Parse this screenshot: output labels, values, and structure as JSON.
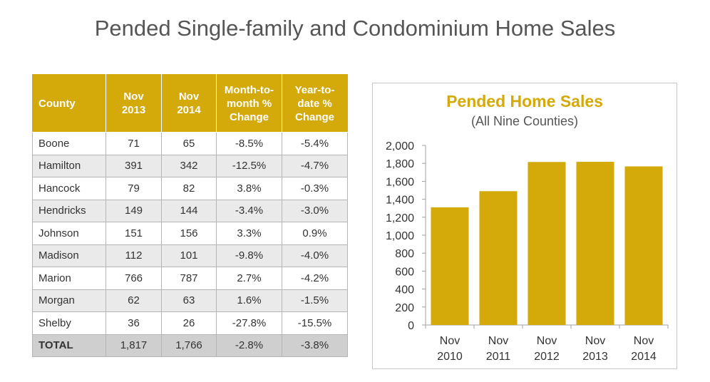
{
  "page": {
    "title": "Pended Single-family and Condominium Home Sales"
  },
  "table": {
    "headers": [
      [
        "County"
      ],
      [
        "Nov",
        "2013"
      ],
      [
        "Nov",
        "2014"
      ],
      [
        "Month-to-",
        "month %",
        "Change"
      ],
      [
        "Year-to-",
        "date %",
        "Change"
      ]
    ],
    "rows": [
      [
        "Boone",
        "71",
        "65",
        "-8.5%",
        "-5.4%"
      ],
      [
        "Hamilton",
        "391",
        "342",
        "-12.5%",
        "-4.7%"
      ],
      [
        "Hancock",
        "79",
        "82",
        "3.8%",
        "-0.3%"
      ],
      [
        "Hendricks",
        "149",
        "144",
        "-3.4%",
        "-3.0%"
      ],
      [
        "Johnson",
        "151",
        "156",
        "3.3%",
        "0.9%"
      ],
      [
        "Madison",
        "112",
        "101",
        "-9.8%",
        "-4.0%"
      ],
      [
        "Marion",
        "766",
        "787",
        "2.7%",
        "-4.2%"
      ],
      [
        "Morgan",
        "62",
        "63",
        "1.6%",
        "-1.5%"
      ],
      [
        "Shelby",
        "36",
        "26",
        "-27.8%",
        "-15.5%"
      ]
    ],
    "total": [
      "TOTAL",
      "1,817",
      "1,766",
      "-2.8%",
      "-3.8%"
    ],
    "header_color": "#d4a90a"
  },
  "chart_data": {
    "type": "bar",
    "title": "Pended Home Sales",
    "subtitle": "(All Nine Counties)",
    "categories": [
      [
        "Nov",
        "2010"
      ],
      [
        "Nov",
        "2011"
      ],
      [
        "Nov",
        "2012"
      ],
      [
        "Nov",
        "2013"
      ],
      [
        "Nov",
        "2014"
      ]
    ],
    "values": [
      1310,
      1490,
      1815,
      1817,
      1766
    ],
    "ylim": [
      0,
      2000
    ],
    "yticks": [
      "0",
      "200",
      "400",
      "600",
      "800",
      "1,000",
      "1,200",
      "1,400",
      "1,600",
      "1,800",
      "2,000"
    ],
    "grid": false,
    "bar_color": "#d4a90a"
  }
}
